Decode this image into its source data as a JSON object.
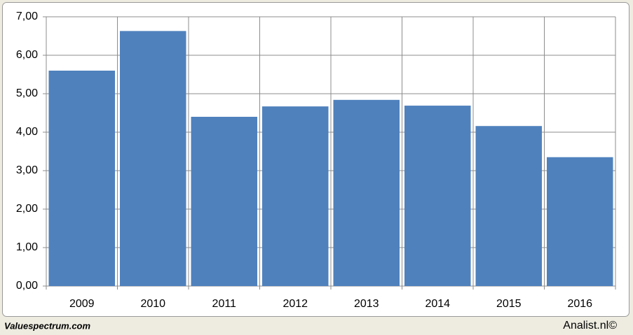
{
  "chart_data": {
    "type": "bar",
    "categories": [
      "2009",
      "2010",
      "2011",
      "2012",
      "2013",
      "2014",
      "2015",
      "2016"
    ],
    "values": [
      5.6,
      6.63,
      4.4,
      4.67,
      4.84,
      4.69,
      4.16,
      3.35
    ],
    "color": "#4f81bd",
    "ylim": [
      0,
      7
    ],
    "yticks": [
      {
        "value": 0,
        "label": "0,00"
      },
      {
        "value": 1,
        "label": "1,00"
      },
      {
        "value": 2,
        "label": "2,00"
      },
      {
        "value": 3,
        "label": "3,00"
      },
      {
        "value": 4,
        "label": "4,00"
      },
      {
        "value": 5,
        "label": "5,00"
      },
      {
        "value": 6,
        "label": "6,00"
      },
      {
        "value": 7,
        "label": "7,00"
      }
    ],
    "grid": true
  },
  "footer": {
    "left": "Valuespectrum.com",
    "right": "Analist.nl©"
  }
}
